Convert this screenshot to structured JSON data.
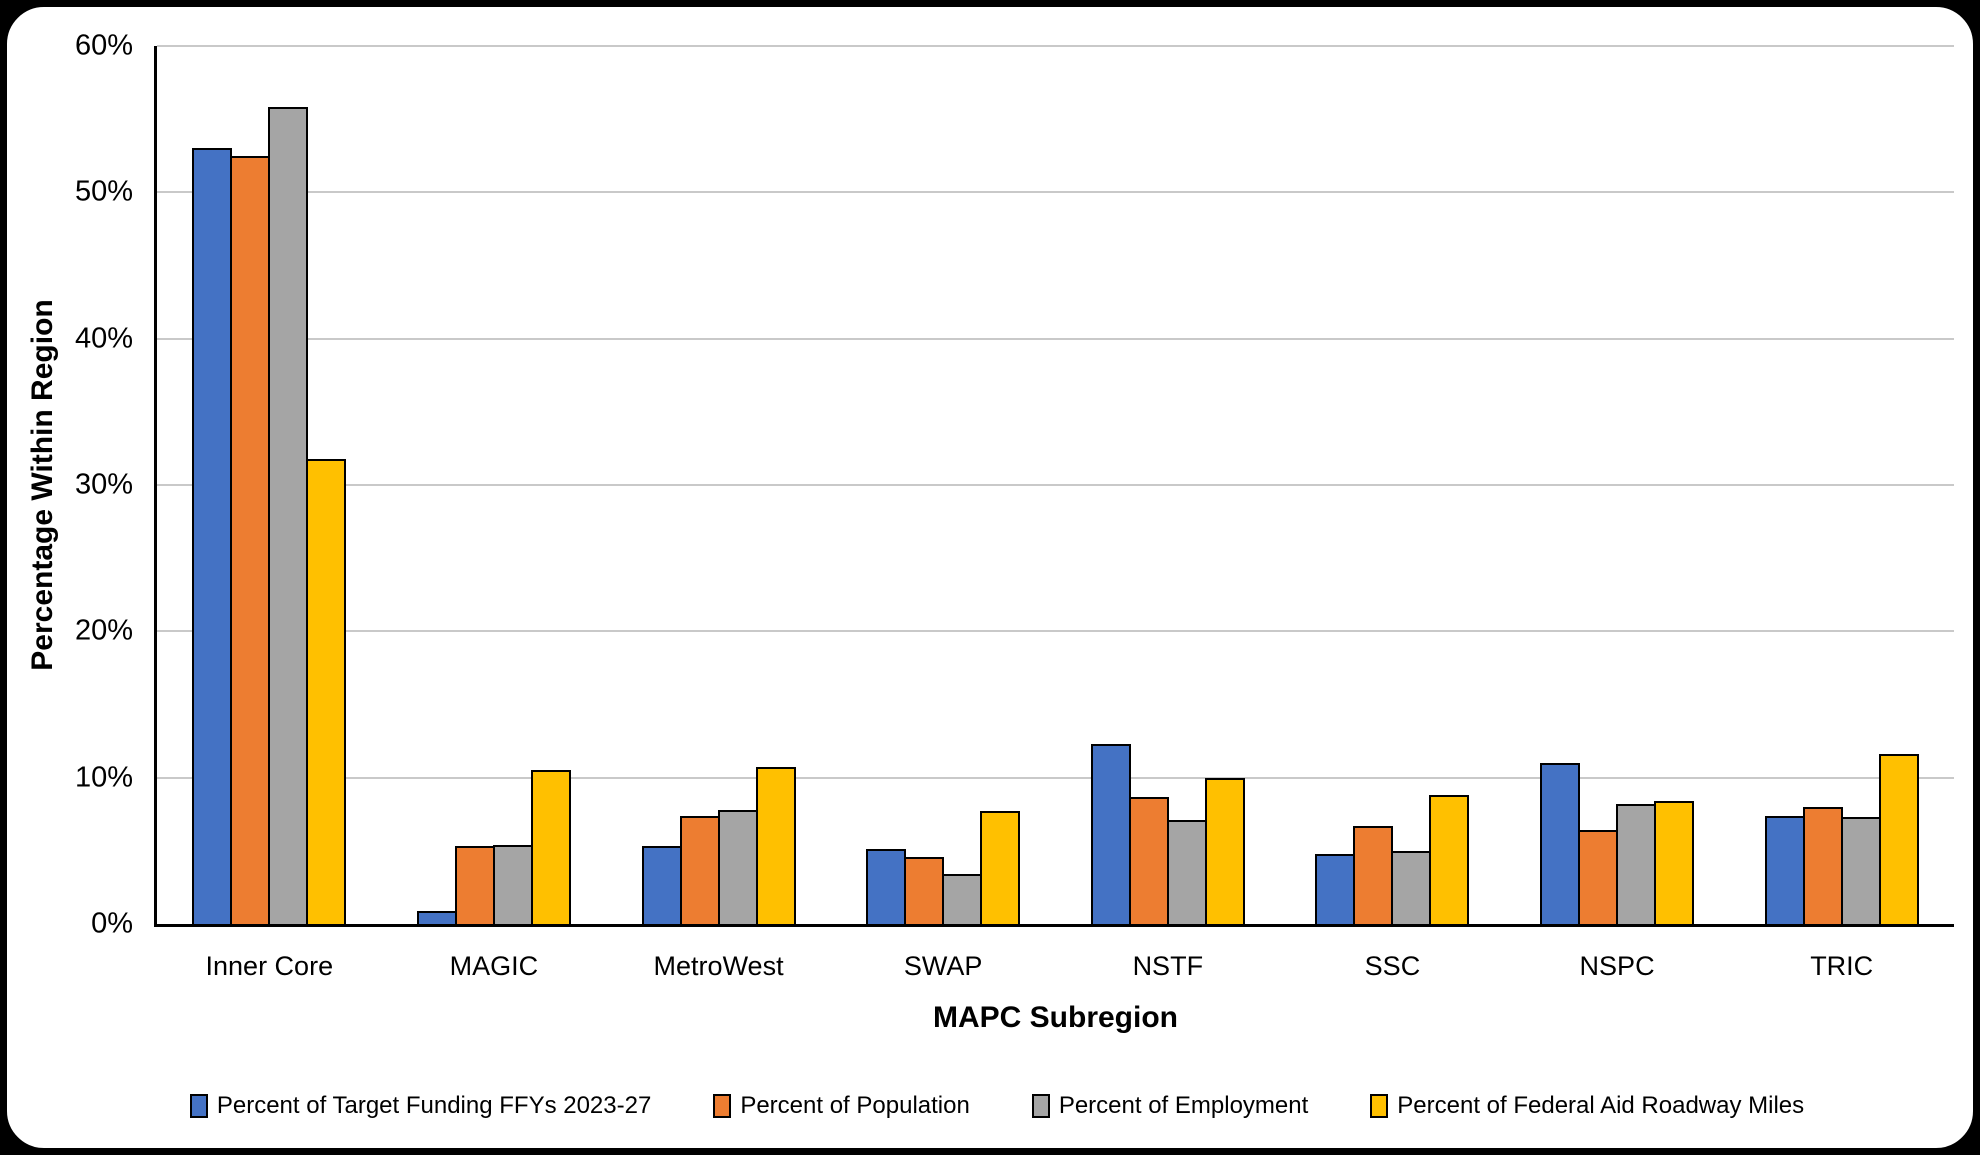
{
  "chart_data": {
    "type": "bar",
    "title": "",
    "xlabel": "MAPC Subregion",
    "ylabel": "Percentage Within Region",
    "categories": [
      "Inner Core",
      "MAGIC",
      "MetroWest",
      "SWAP",
      "NSTF",
      "SSC",
      "NSPC",
      "TRIC"
    ],
    "series": [
      {
        "name": "Percent of Target Funding FFYs 2023-27",
        "color": "#4472C4",
        "values": [
          53.0,
          0.9,
          5.3,
          5.1,
          12.3,
          4.8,
          11.0,
          7.4
        ]
      },
      {
        "name": "Percent of Population",
        "color": "#ED7D31",
        "values": [
          52.5,
          5.3,
          7.4,
          4.6,
          8.7,
          6.7,
          6.4,
          8.0
        ]
      },
      {
        "name": "Percent of Employment",
        "color": "#A5A5A5",
        "values": [
          55.8,
          5.4,
          7.8,
          3.4,
          7.1,
          5.0,
          8.2,
          7.3
        ]
      },
      {
        "name": "Percent of Federal Aid Roadway Miles",
        "color": "#FFC000",
        "values": [
          31.8,
          10.5,
          10.7,
          7.7,
          10.0,
          8.8,
          8.4,
          11.6
        ]
      }
    ],
    "y_axis": {
      "min": 0,
      "max": 60,
      "step": 10,
      "tick_labels": [
        "0%",
        "10%",
        "20%",
        "30%",
        "40%",
        "50%",
        "60%"
      ]
    },
    "grid": true,
    "legend_position": "bottom",
    "bar_outline_color": "#000000",
    "gridline_color": "#C9C9C9"
  }
}
